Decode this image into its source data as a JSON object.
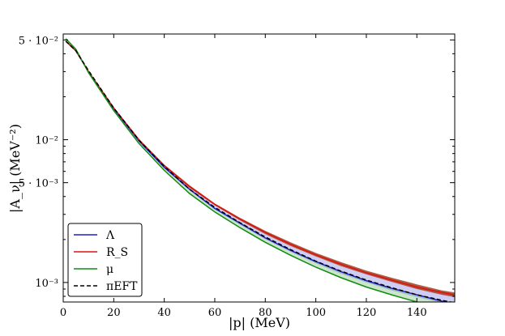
{
  "chart_data": {
    "type": "line",
    "xlabel": "|p| (MeV)",
    "ylabel": "|A_ν| (MeV⁻²)",
    "xlim": [
      0,
      155
    ],
    "ylim": [
      0.00073,
      0.055
    ],
    "yscale": "log",
    "grid": false,
    "legend_position": "bottom-left",
    "x_ticks": [
      0,
      20,
      40,
      60,
      80,
      100,
      120,
      140
    ],
    "x_tick_labels": [
      "0",
      "20",
      "40",
      "60",
      "80",
      "100",
      "120",
      "140"
    ],
    "y_ticks": [
      0.05,
      0.01,
      0.005,
      0.001
    ],
    "y_tick_labels": [
      "5 · 10⁻²",
      "10⁻²",
      "5 · 10⁻³",
      "10⁻³"
    ],
    "x": [
      1,
      5,
      10,
      20,
      30,
      40,
      50,
      60,
      70,
      80,
      90,
      100,
      110,
      120,
      130,
      140,
      150,
      155
    ],
    "series": [
      {
        "name": "Λ",
        "color": "#1f1fd1",
        "dash": "solid",
        "values": [
          0.049,
          0.042,
          0.03,
          0.0165,
          0.0098,
          0.0064,
          0.0045,
          0.0033,
          0.0026,
          0.00205,
          0.00168,
          0.0014,
          0.00119,
          0.00103,
          0.00091,
          0.00082,
          0.00074,
          0.00071
        ],
        "band_upper": [
          0.049,
          0.042,
          0.03,
          0.0166,
          0.0099,
          0.0065,
          0.0046,
          0.00345,
          0.00272,
          0.00218,
          0.0018,
          0.00152,
          0.00131,
          0.00115,
          0.00102,
          0.00092,
          0.00084,
          0.00081
        ],
        "band_lower": [
          0.049,
          0.042,
          0.03,
          0.0164,
          0.0097,
          0.0063,
          0.0044,
          0.00325,
          0.00254,
          0.00201,
          0.00164,
          0.00136,
          0.00115,
          0.001,
          0.00088,
          0.00079,
          0.00072,
          0.00069
        ]
      },
      {
        "name": "R_S",
        "color": "#e01010",
        "dash": "solid",
        "values": [
          0.049,
          0.042,
          0.03,
          0.0167,
          0.01,
          0.0066,
          0.0047,
          0.00352,
          0.00278,
          0.00224,
          0.00185,
          0.00156,
          0.00134,
          0.00117,
          0.00104,
          0.00093,
          0.00085,
          0.00082
        ],
        "band_upper": [
          0.049,
          0.042,
          0.03,
          0.0168,
          0.0101,
          0.0067,
          0.0048,
          0.00358,
          0.00284,
          0.0023,
          0.00191,
          0.00161,
          0.00139,
          0.00121,
          0.00108,
          0.00097,
          0.00088,
          0.00085
        ],
        "band_lower": [
          0.049,
          0.042,
          0.03,
          0.0166,
          0.0099,
          0.0065,
          0.0046,
          0.00346,
          0.00272,
          0.00218,
          0.0018,
          0.00152,
          0.0013,
          0.00114,
          0.00101,
          0.0009,
          0.00082,
          0.00079
        ]
      },
      {
        "name": "μ",
        "color": "#108c10",
        "dash": "solid",
        "values": [
          0.051,
          0.043,
          0.0295,
          0.016,
          0.0094,
          0.0061,
          0.0042,
          0.00312,
          0.00242,
          0.00191,
          0.00155,
          0.00128,
          0.00108,
          0.00093,
          0.00082,
          0.00073,
          0.00067,
          0.00064
        ],
        "band_upper": [
          0.051,
          0.043,
          0.0295,
          0.0163,
          0.0097,
          0.0063,
          0.0044,
          0.0033,
          0.00258,
          0.00205,
          0.00168,
          0.0014,
          0.00119,
          0.00103,
          0.00091,
          0.00081,
          0.00074,
          0.00071
        ],
        "band_lower": [
          0.051,
          0.043,
          0.0295,
          0.016,
          0.0094,
          0.0061,
          0.0042,
          0.00312,
          0.00242,
          0.00191,
          0.00155,
          0.00128,
          0.00108,
          0.00093,
          0.00082,
          0.00073,
          0.00067,
          0.00064
        ]
      },
      {
        "name": "πEFT",
        "color": "#000000",
        "dash": "dashed",
        "values": [
          0.049,
          0.042,
          0.0305,
          0.0167,
          0.0099,
          0.0065,
          0.0045,
          0.00336,
          0.00262,
          0.00208,
          0.0017,
          0.00141,
          0.0012,
          0.00104,
          0.00092,
          0.00082,
          0.00075,
          0.00072
        ]
      }
    ]
  }
}
